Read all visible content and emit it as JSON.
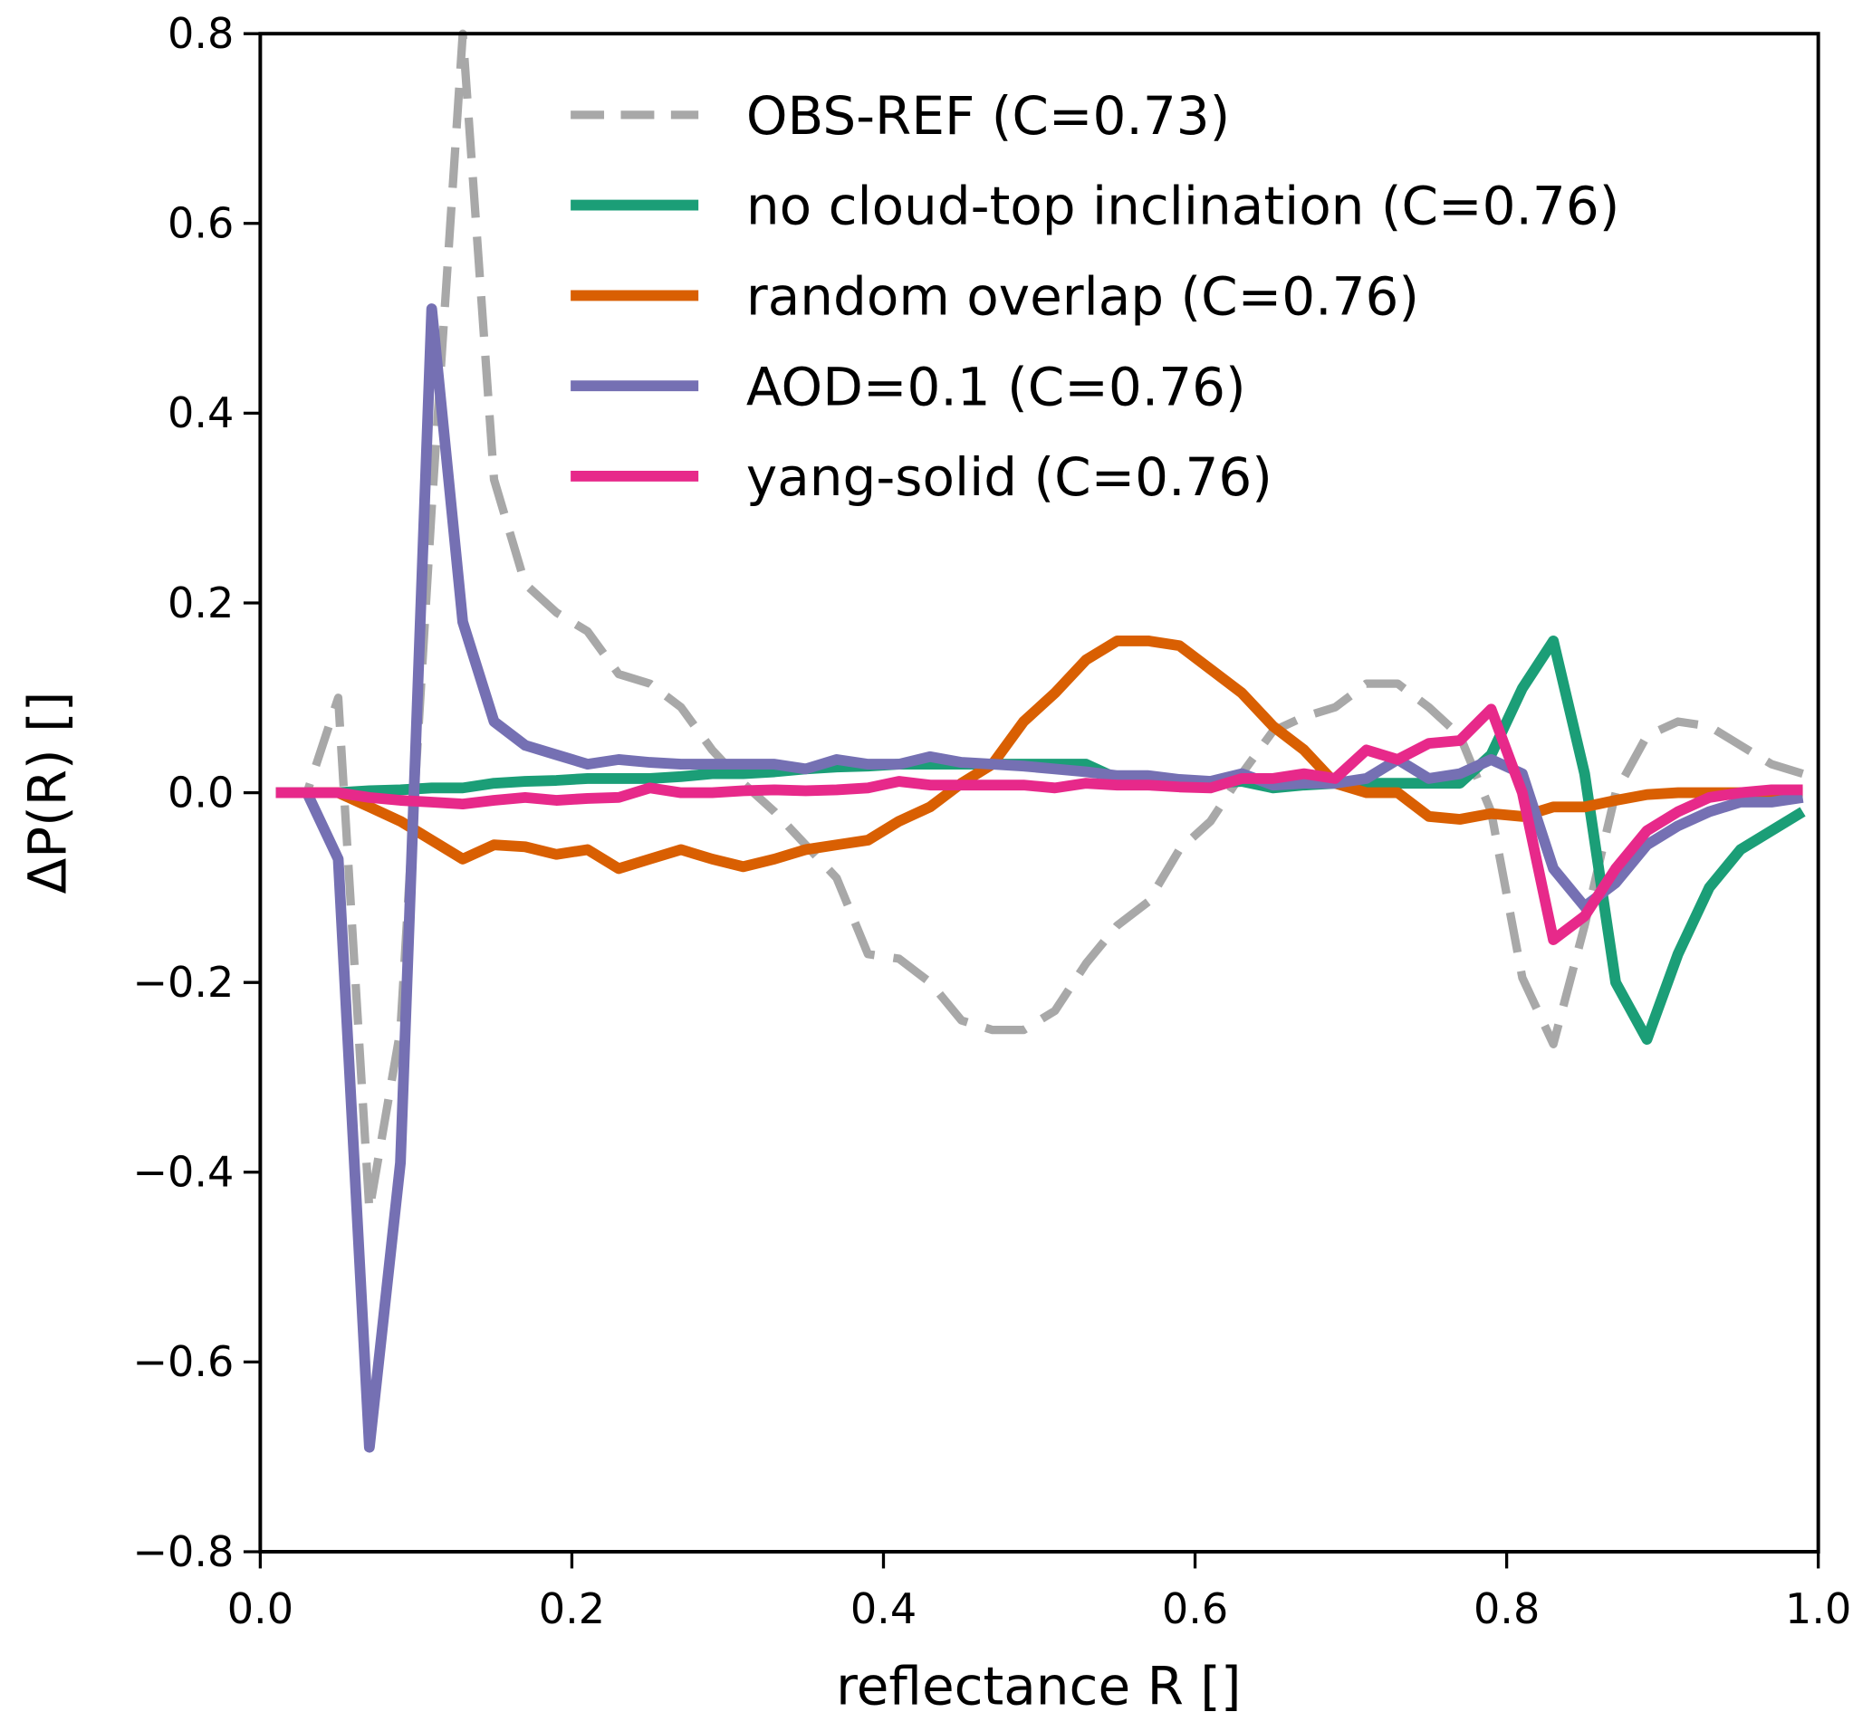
{
  "chart_data": {
    "type": "line",
    "title": "",
    "xlabel": "reflectance R []",
    "ylabel": "ΔP(R) []",
    "xlim": [
      0.0,
      1.0
    ],
    "ylim": [
      -0.8,
      0.8
    ],
    "xticks": [
      "0.0",
      "0.2",
      "0.4",
      "0.6",
      "0.8",
      "1.0"
    ],
    "xtick_values": [
      0.0,
      0.2,
      0.4,
      0.6,
      0.8,
      1.0
    ],
    "yticks": [
      "−0.8",
      "−0.6",
      "−0.4",
      "−0.2",
      "0.0",
      "0.2",
      "0.4",
      "0.6",
      "0.8"
    ],
    "ytick_values": [
      -0.8,
      -0.6,
      -0.4,
      -0.2,
      0.0,
      0.2,
      0.4,
      0.6,
      0.8
    ],
    "grid": false,
    "legend_position": "top-right",
    "x": [
      0.01,
      0.03,
      0.05,
      0.07,
      0.09,
      0.11,
      0.13,
      0.15,
      0.17,
      0.19,
      0.21,
      0.23,
      0.25,
      0.27,
      0.29,
      0.31,
      0.33,
      0.35,
      0.37,
      0.39,
      0.41,
      0.43,
      0.45,
      0.47,
      0.49,
      0.51,
      0.53,
      0.55,
      0.57,
      0.59,
      0.61,
      0.63,
      0.65,
      0.67,
      0.69,
      0.71,
      0.73,
      0.75,
      0.77,
      0.79,
      0.81,
      0.83,
      0.85,
      0.87,
      0.89,
      0.91,
      0.93,
      0.95,
      0.97,
      0.99
    ],
    "series": [
      {
        "name": "OBS-REF (C=0.73)",
        "color": "#a8a8a8",
        "dashed": true,
        "values": [
          0,
          0,
          0.1,
          -0.44,
          -0.25,
          0.3,
          0.8,
          0.33,
          0.22,
          0.19,
          0.17,
          0.125,
          0.115,
          0.09,
          0.045,
          0.01,
          -0.02,
          -0.055,
          -0.09,
          -0.17,
          -0.175,
          -0.2,
          -0.24,
          -0.25,
          -0.25,
          -0.23,
          -0.18,
          -0.14,
          -0.115,
          -0.06,
          -0.03,
          0.02,
          0.065,
          0.08,
          0.09,
          0.115,
          0.115,
          0.09,
          0.06,
          -0.02,
          -0.195,
          -0.265,
          -0.14,
          0.0,
          0.06,
          0.075,
          0.07,
          0.05,
          0.03,
          0.02
        ]
      },
      {
        "name": "no cloud-top inclination (C=0.76)",
        "color": "#1b9e77",
        "dashed": false,
        "values": [
          0,
          0,
          0,
          0.002,
          0.003,
          0.005,
          0.005,
          0.01,
          0.012,
          0.013,
          0.015,
          0.015,
          0.015,
          0.017,
          0.02,
          0.02,
          0.022,
          0.025,
          0.027,
          0.028,
          0.03,
          0.03,
          0.03,
          0.03,
          0.03,
          0.03,
          0.03,
          0.015,
          0.015,
          0.012,
          0.01,
          0.012,
          0.005,
          0.008,
          0.01,
          0.01,
          0.01,
          0.01,
          0.01,
          0.04,
          0.11,
          0.16,
          0.02,
          -0.2,
          -0.26,
          -0.17,
          -0.1,
          -0.06,
          -0.04,
          -0.02
        ]
      },
      {
        "name": "random overlap (C=0.76)",
        "color": "#d95f02",
        "dashed": false,
        "values": [
          0,
          0,
          0,
          -0.015,
          -0.03,
          -0.05,
          -0.07,
          -0.055,
          -0.057,
          -0.065,
          -0.06,
          -0.08,
          -0.07,
          -0.06,
          -0.07,
          -0.078,
          -0.07,
          -0.06,
          -0.055,
          -0.05,
          -0.03,
          -0.015,
          0.01,
          0.03,
          0.075,
          0.105,
          0.14,
          0.16,
          0.16,
          0.155,
          0.13,
          0.105,
          0.07,
          0.045,
          0.01,
          0,
          0,
          -0.025,
          -0.028,
          -0.022,
          -0.025,
          -0.015,
          -0.015,
          -0.008,
          -0.002,
          0,
          0,
          0,
          0,
          0
        ]
      },
      {
        "name": "AOD=0.1 (C=0.76)",
        "color": "#7570b3",
        "dashed": false,
        "values": [
          0,
          0,
          -0.07,
          -0.69,
          -0.39,
          0.51,
          0.18,
          0.075,
          0.05,
          0.04,
          0.03,
          0.035,
          0.032,
          0.03,
          0.03,
          0.03,
          0.03,
          0.025,
          0.035,
          0.03,
          0.03,
          0.038,
          0.032,
          0.03,
          0.028,
          0.025,
          0.022,
          0.018,
          0.018,
          0.014,
          0.012,
          0.02,
          0.008,
          0.01,
          0.01,
          0.015,
          0.035,
          0.015,
          0.02,
          0.035,
          0.02,
          -0.08,
          -0.12,
          -0.095,
          -0.055,
          -0.035,
          -0.02,
          -0.01,
          -0.01,
          -0.005
        ]
      },
      {
        "name": "yang-solid (C=0.76)",
        "color": "#e7298a",
        "dashed": false,
        "values": [
          0,
          0,
          0,
          -0.005,
          -0.008,
          -0.01,
          -0.012,
          -0.008,
          -0.005,
          -0.008,
          -0.006,
          -0.005,
          0.005,
          0,
          0,
          0.002,
          0.003,
          0.002,
          0.003,
          0.005,
          0.012,
          0.008,
          0.008,
          0.008,
          0.008,
          0.005,
          0.01,
          0.008,
          0.008,
          0.006,
          0.005,
          0.015,
          0.015,
          0.02,
          0.015,
          0.045,
          0.035,
          0.052,
          0.055,
          0.088,
          0,
          -0.155,
          -0.13,
          -0.08,
          -0.04,
          -0.02,
          -0.005,
          0,
          0.003,
          0.003
        ]
      }
    ]
  }
}
